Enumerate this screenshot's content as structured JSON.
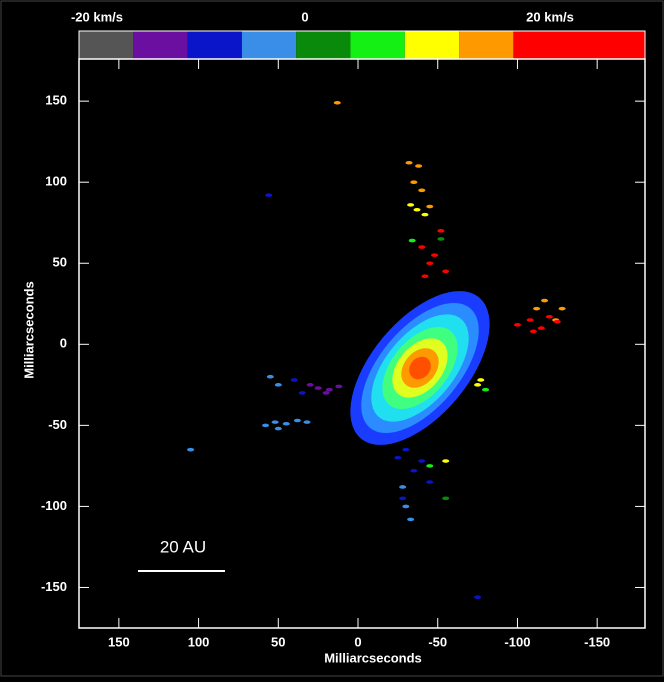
{
  "chart_data": {
    "type": "scatter",
    "x_label": "Milliarcseconds",
    "y_label": "Milliarcseconds",
    "xlim": [
      175,
      -180
    ],
    "ylim": [
      -175,
      176
    ],
    "xticks": [
      150,
      100,
      50,
      0,
      -50,
      -100,
      -150
    ],
    "yticks": [
      150,
      100,
      50,
      0,
      -50,
      -100,
      -150
    ],
    "colorbar": {
      "colors": [
        "#555555",
        "#6a0fa0",
        "#0a14c8",
        "#3a8ee8",
        "#0a8a0a",
        "#14f014",
        "#ffff00",
        "#ff9900",
        "#ff0000"
      ],
      "labels": [
        "-20 km/s",
        "0",
        "20 km/s"
      ]
    },
    "scale_bar_label": "20 AU",
    "series": [
      {
        "color": "#ff9900",
        "x": [
          -32,
          -38,
          -35,
          -40,
          -45,
          -117,
          -124,
          -128,
          -112,
          13
        ],
        "y": [
          112,
          110,
          100,
          95,
          85,
          27,
          15,
          22,
          22,
          149
        ]
      },
      {
        "color": "#ffff00",
        "x": [
          -33,
          -37,
          -42,
          -77,
          -75,
          -55
        ],
        "y": [
          86,
          83,
          80,
          -22,
          -25,
          -72
        ]
      },
      {
        "color": "#ff0000",
        "x": [
          -40,
          -45,
          -52,
          -55,
          -48,
          -42,
          -100,
          -108,
          -115,
          -120,
          -125,
          -110
        ],
        "y": [
          60,
          50,
          70,
          45,
          55,
          42,
          12,
          15,
          10,
          17,
          14,
          8
        ]
      },
      {
        "color": "#14f014",
        "x": [
          -34,
          -80,
          -45
        ],
        "y": [
          64,
          -28,
          -75
        ]
      },
      {
        "color": "#0a8a0a",
        "x": [
          -52,
          -55
        ],
        "y": [
          65,
          -95
        ]
      },
      {
        "color": "#6a0fa0",
        "x": [
          30,
          25,
          18,
          12,
          20
        ],
        "y": [
          -25,
          -27,
          -28,
          -26,
          -30
        ]
      },
      {
        "color": "#0a14c8",
        "x": [
          40,
          35,
          -25,
          -30,
          -35,
          -40,
          -45,
          -28,
          56,
          -75
        ],
        "y": [
          -22,
          -30,
          -70,
          -65,
          -78,
          -72,
          -85,
          -95,
          92,
          -156
        ]
      },
      {
        "color": "#3a8ee8",
        "x": [
          55,
          50,
          58,
          52,
          45,
          38,
          32,
          50,
          -28,
          -30,
          -33,
          105
        ],
        "y": [
          -20,
          -25,
          -50,
          -48,
          -49,
          -47,
          -48,
          -52,
          -88,
          -100,
          -108,
          -65
        ]
      }
    ]
  }
}
